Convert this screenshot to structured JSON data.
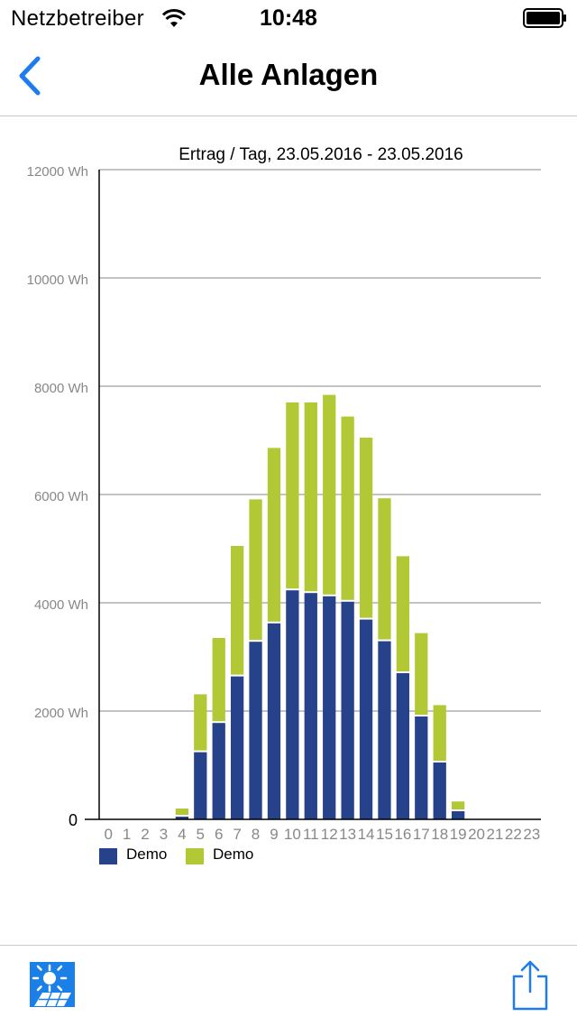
{
  "status": {
    "carrier": "Netzbetreiber",
    "time": "10:48"
  },
  "nav": {
    "title": "Alle Anlagen"
  },
  "colors": {
    "accent": "#1f7cf0",
    "series1": "#25428a",
    "series2": "#b2c935",
    "grid": "#a0a0a0"
  },
  "icons": {
    "back": "chevron-left-icon",
    "logo": "solar-panel-icon",
    "share": "share-icon"
  },
  "chart_data": {
    "type": "bar",
    "stacked": true,
    "title": "Ertrag / Tag, 23.05.2016 - 23.05.2016",
    "categories": [
      "0",
      "1",
      "2",
      "3",
      "4",
      "5",
      "6",
      "7",
      "8",
      "9",
      "10",
      "11",
      "12",
      "13",
      "14",
      "15",
      "16",
      "17",
      "18",
      "19",
      "20",
      "21",
      "22",
      "23"
    ],
    "y_tick_labels": [
      "0",
      "2000 Wh",
      "4000 Wh",
      "6000 Wh",
      "8000 Wh",
      "10000 Wh",
      "12000 Wh"
    ],
    "ylim": [
      0,
      12000
    ],
    "grid": true,
    "legend_position": "bottom-left",
    "series": [
      {
        "name": "Demo",
        "color": "#25428a",
        "values": [
          0,
          0,
          0,
          0,
          50,
          1240,
          1780,
          2640,
          3280,
          3620,
          4230,
          4180,
          4120,
          4020,
          3690,
          3290,
          2700,
          1900,
          1050,
          150,
          0,
          0,
          0,
          0
        ]
      },
      {
        "name": "Demo",
        "color": "#b2c935",
        "values": [
          0,
          0,
          0,
          0,
          150,
          1070,
          1570,
          2410,
          2630,
          3240,
          3470,
          3520,
          3720,
          3420,
          3360,
          2640,
          2160,
          1540,
          1060,
          180,
          0,
          0,
          0,
          0
        ]
      }
    ]
  }
}
